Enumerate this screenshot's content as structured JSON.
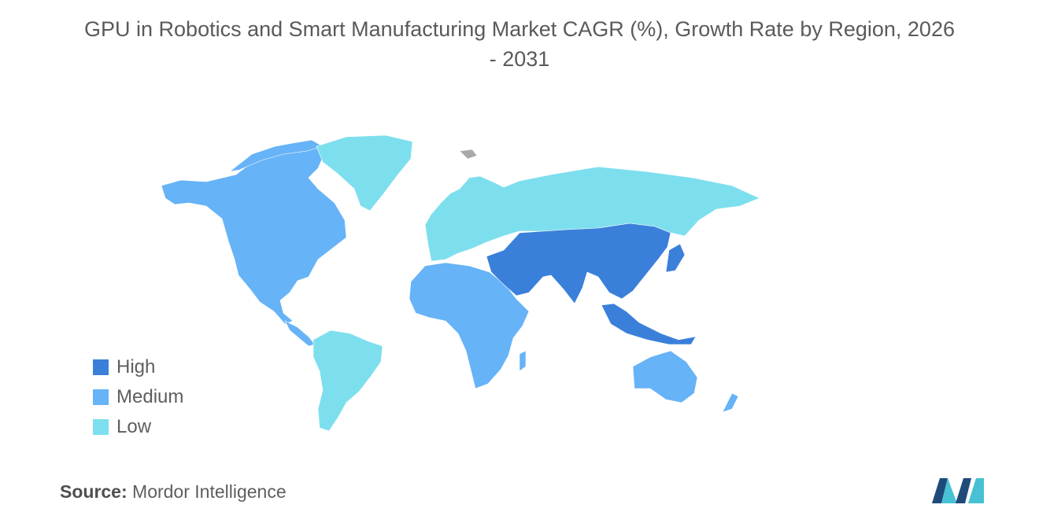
{
  "title_line1": "GPU in Robotics and Smart Manufacturing Market CAGR (%), Growth Rate by Region, 2026",
  "title_line2": "- 2031",
  "legend": [
    {
      "label": "High",
      "color": "#3a80da"
    },
    {
      "label": "Medium",
      "color": "#66b3f7"
    },
    {
      "label": "Low",
      "color": "#7ddfee"
    }
  ],
  "colors": {
    "high": "#3a80da",
    "medium": "#66b3f7",
    "low": "#7ddfee",
    "no_data": "#a9a9a9",
    "logo_dark": "#1f4b7a",
    "logo_light": "#47c1d3"
  },
  "regions": [
    {
      "name": "North America",
      "level": "Medium"
    },
    {
      "name": "Greenland",
      "level": "Low"
    },
    {
      "name": "South America",
      "level": "Low"
    },
    {
      "name": "Europe and Russia",
      "level": "Low"
    },
    {
      "name": "Africa",
      "level": "Medium"
    },
    {
      "name": "Middle East",
      "level": "High"
    },
    {
      "name": "Asia",
      "level": "High"
    },
    {
      "name": "Southeast Asia",
      "level": "High"
    },
    {
      "name": "Australia and New Zealand",
      "level": "Medium"
    }
  ],
  "source_label": "Source:",
  "source_value": "Mordor Intelligence",
  "logo_icon": "mordor-intelligence-logo"
}
